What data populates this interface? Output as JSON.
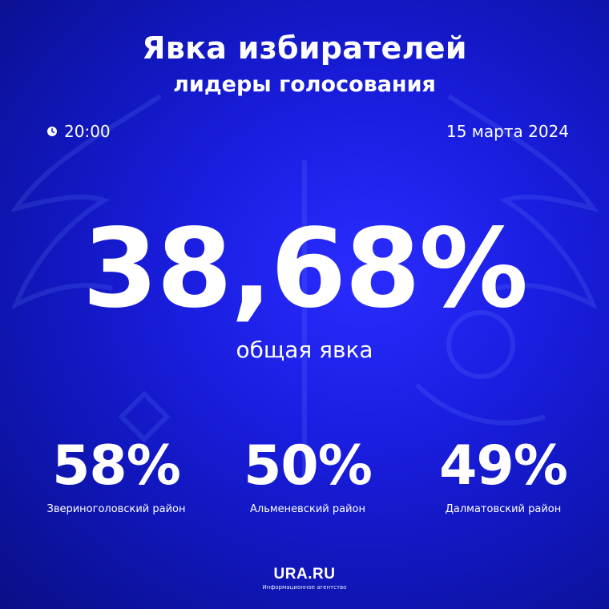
{
  "header": {
    "title": "Явка избирателей",
    "subtitle": "лидеры голосования"
  },
  "meta": {
    "time": "20:00",
    "date": "15 марта 2024",
    "time_icon": "clock-icon"
  },
  "total": {
    "value": "38,68%",
    "label": "общая явка"
  },
  "leaders": [
    {
      "value": "58%",
      "district": "Звериноголовский район"
    },
    {
      "value": "50%",
      "district": "Альменевский район"
    },
    {
      "value": "49%",
      "district": "Далматовский район"
    }
  ],
  "logo": {
    "name": "URA.RU",
    "tagline": "Информационное агентство"
  },
  "colors": {
    "background": "#1a1ee0",
    "text": "#ffffff"
  }
}
